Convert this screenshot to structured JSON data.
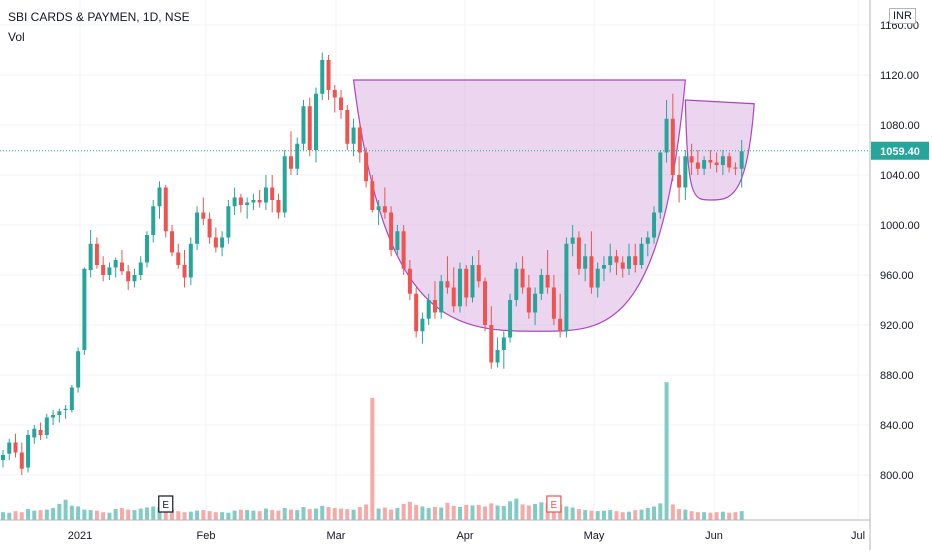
{
  "header": {
    "title": "SBI CARDS & PAYMEN, 1D, NSE",
    "volume_label": "Vol",
    "currency": "INR"
  },
  "colors": {
    "up": "#26a69a",
    "down": "#ef5350",
    "up_vol": "#80cbc4",
    "down_vol": "#f7a9a7",
    "pattern_fill": "#e1bee7",
    "pattern_stroke": "#ab47bc",
    "last_price": "#26a69a",
    "grid": "#f0f3fa",
    "axis": "#b2b5be"
  },
  "chart_data": {
    "type": "candlestick",
    "title": "SBI CARDS & PAYMEN, 1D, NSE",
    "ylim": [
      770,
      1160
    ],
    "y_ticks": [
      "1160.00",
      "1120.00",
      "1080.00",
      "1040.00",
      "1000.00",
      "960.00",
      "920.00",
      "880.00",
      "840.00",
      "800.00"
    ],
    "x_ticks": [
      "2021",
      "Feb",
      "Mar",
      "Apr",
      "May",
      "Jun",
      "Jul"
    ],
    "last_price": "1059.40",
    "grid": true,
    "candles": [
      [
        812,
        820,
        806,
        816
      ],
      [
        817,
        829,
        812,
        826
      ],
      [
        826,
        833,
        814,
        818
      ],
      [
        818,
        826,
        800,
        805
      ],
      [
        806,
        836,
        802,
        832
      ],
      [
        830,
        840,
        825,
        837
      ],
      [
        836,
        842,
        828,
        832
      ],
      [
        832,
        849,
        829,
        846
      ],
      [
        846,
        852,
        840,
        848
      ],
      [
        848,
        853,
        842,
        851
      ],
      [
        852,
        856,
        845,
        853
      ],
      [
        852,
        872,
        850,
        870
      ],
      [
        870,
        902,
        866,
        899
      ],
      [
        900,
        966,
        896,
        965
      ],
      [
        964,
        996,
        958,
        985
      ],
      [
        985,
        990,
        965,
        968
      ],
      [
        968,
        975,
        955,
        960
      ],
      [
        960,
        970,
        956,
        966
      ],
      [
        966,
        974,
        958,
        972
      ],
      [
        970,
        980,
        960,
        963
      ],
      [
        963,
        968,
        948,
        955
      ],
      [
        955,
        965,
        950,
        960
      ],
      [
        960,
        975,
        956,
        970
      ],
      [
        970,
        995,
        966,
        992
      ],
      [
        992,
        1020,
        986,
        1015
      ],
      [
        1015,
        1035,
        1005,
        1030
      ],
      [
        1030,
        1032,
        990,
        995
      ],
      [
        995,
        1000,
        975,
        978
      ],
      [
        978,
        985,
        965,
        968
      ],
      [
        968,
        980,
        950,
        958
      ],
      [
        958,
        990,
        952,
        985
      ],
      [
        985,
        1015,
        980,
        1010
      ],
      [
        1010,
        1022,
        1000,
        1005
      ],
      [
        1005,
        1010,
        985,
        990
      ],
      [
        990,
        998,
        978,
        982
      ],
      [
        982,
        995,
        975,
        990
      ],
      [
        990,
        1020,
        985,
        1015
      ],
      [
        1015,
        1030,
        1008,
        1022
      ],
      [
        1022,
        1025,
        1010,
        1016
      ],
      [
        1016,
        1022,
        1005,
        1018
      ],
      [
        1018,
        1025,
        1012,
        1020
      ],
      [
        1020,
        1028,
        1014,
        1018
      ],
      [
        1018,
        1040,
        1012,
        1030
      ],
      [
        1030,
        1040,
        1010,
        1020
      ],
      [
        1020,
        1025,
        1005,
        1010
      ],
      [
        1010,
        1060,
        1006,
        1055
      ],
      [
        1055,
        1075,
        1040,
        1045
      ],
      [
        1045,
        1070,
        1040,
        1065
      ],
      [
        1065,
        1100,
        1060,
        1095
      ],
      [
        1095,
        1102,
        1055,
        1060
      ],
      [
        1060,
        1110,
        1050,
        1105
      ],
      [
        1105,
        1138,
        1100,
        1132
      ],
      [
        1132,
        1136,
        1100,
        1108
      ],
      [
        1108,
        1112,
        1090,
        1102
      ],
      [
        1102,
        1108,
        1085,
        1092
      ],
      [
        1092,
        1096,
        1060,
        1065
      ],
      [
        1065,
        1085,
        1055,
        1078
      ],
      [
        1078,
        1082,
        1050,
        1058
      ],
      [
        1058,
        1062,
        1030,
        1035
      ],
      [
        1035,
        1040,
        1010,
        1012
      ],
      [
        1012,
        1020,
        1000,
        1015
      ],
      [
        1015,
        1030,
        1005,
        1010
      ],
      [
        1010,
        1015,
        975,
        980
      ],
      [
        980,
        1000,
        976,
        995
      ],
      [
        995,
        1000,
        960,
        965
      ],
      [
        965,
        972,
        940,
        945
      ],
      [
        945,
        950,
        910,
        915
      ],
      [
        915,
        930,
        905,
        925
      ],
      [
        925,
        945,
        920,
        940
      ],
      [
        940,
        955,
        925,
        930
      ],
      [
        930,
        960,
        925,
        955
      ],
      [
        955,
        975,
        945,
        950
      ],
      [
        950,
        966,
        930,
        935
      ],
      [
        935,
        970,
        930,
        965
      ],
      [
        965,
        968,
        935,
        942
      ],
      [
        942,
        975,
        938,
        968
      ],
      [
        968,
        980,
        950,
        955
      ],
      [
        955,
        958,
        915,
        920
      ],
      [
        920,
        935,
        885,
        890
      ],
      [
        890,
        910,
        886,
        900
      ],
      [
        900,
        915,
        885,
        910
      ],
      [
        910,
        945,
        906,
        940
      ],
      [
        940,
        970,
        935,
        965
      ],
      [
        965,
        975,
        945,
        950
      ],
      [
        950,
        960,
        925,
        930
      ],
      [
        930,
        950,
        920,
        945
      ],
      [
        945,
        965,
        940,
        960
      ],
      [
        960,
        980,
        945,
        950
      ],
      [
        950,
        960,
        920,
        925
      ],
      [
        925,
        945,
        910,
        915
      ],
      [
        915,
        990,
        910,
        985
      ],
      [
        985,
        1000,
        975,
        990
      ],
      [
        990,
        995,
        960,
        965
      ],
      [
        965,
        985,
        955,
        975
      ],
      [
        975,
        995,
        945,
        950
      ],
      [
        950,
        970,
        942,
        965
      ],
      [
        965,
        975,
        955,
        968
      ],
      [
        968,
        985,
        962,
        975
      ],
      [
        975,
        980,
        960,
        970
      ],
      [
        970,
        975,
        958,
        965
      ],
      [
        965,
        985,
        960,
        975
      ],
      [
        975,
        985,
        962,
        968
      ],
      [
        968,
        990,
        965,
        985
      ],
      [
        985,
        995,
        975,
        990
      ],
      [
        990,
        1015,
        985,
        1010
      ],
      [
        1010,
        1060,
        1005,
        1058
      ],
      [
        1058,
        1100,
        1050,
        1085
      ],
      [
        1085,
        1105,
        1035,
        1040
      ],
      [
        1040,
        1055,
        1018,
        1030
      ],
      [
        1030,
        1060,
        1020,
        1055
      ],
      [
        1055,
        1065,
        1040,
        1050
      ],
      [
        1050,
        1060,
        1040,
        1045
      ],
      [
        1045,
        1055,
        1040,
        1052
      ],
      [
        1052,
        1060,
        1045,
        1050
      ],
      [
        1050,
        1058,
        1042,
        1048
      ],
      [
        1048,
        1060,
        1040,
        1055
      ],
      [
        1055,
        1058,
        1042,
        1046
      ],
      [
        1046,
        1050,
        1040,
        1045
      ],
      [
        1045,
        1068,
        1030,
        1059
      ]
    ],
    "volumes": [
      0.3,
      0.28,
      0.34,
      0.3,
      0.42,
      0.36,
      0.38,
      0.4,
      0.46,
      0.62,
      0.78,
      0.55,
      0.52,
      0.4,
      0.38,
      0.36,
      0.3,
      0.28,
      0.42,
      0.46,
      0.4,
      0.38,
      0.44,
      0.48,
      0.52,
      0.5,
      0.46,
      0.4,
      0.34,
      0.3,
      0.32,
      0.36,
      0.38,
      0.34,
      0.3,
      0.3,
      0.28,
      0.36,
      0.4,
      0.38,
      0.36,
      0.34,
      0.44,
      0.38,
      0.36,
      0.46,
      0.4,
      0.38,
      0.5,
      0.42,
      0.44,
      0.54,
      0.5,
      0.46,
      0.44,
      0.42,
      0.4,
      0.5,
      0.6,
      4.7,
      0.44,
      0.48,
      0.4,
      0.46,
      0.62,
      0.7,
      0.58,
      0.52,
      0.46,
      0.5,
      0.48,
      0.66,
      0.54,
      0.5,
      0.58,
      0.56,
      0.58,
      0.52,
      0.64,
      0.56,
      0.54,
      0.72,
      0.82,
      0.6,
      0.56,
      0.62,
      0.68,
      0.66,
      0.72,
      0.6,
      0.52,
      0.48,
      0.42,
      0.38,
      0.36,
      0.34,
      0.36,
      0.38,
      0.34,
      0.3,
      0.32,
      0.38,
      0.4,
      0.46,
      0.52,
      0.64,
      5.3,
      0.6,
      0.42,
      0.4,
      0.34,
      0.3,
      0.3,
      0.28,
      0.3,
      0.32,
      0.28,
      0.3,
      0.34
    ],
    "markers": [
      {
        "label": "E",
        "index": 26,
        "style": "dark"
      },
      {
        "label": "E",
        "index": 88,
        "style": "red"
      }
    ],
    "cup": {
      "start": [
        56,
        1116
      ],
      "bottom": [
        86,
        915
      ],
      "end": [
        109,
        1116
      ]
    },
    "handle": {
      "start": [
        109,
        1100
      ],
      "bottom": [
        113,
        1020
      ],
      "end": [
        120,
        1097
      ]
    }
  }
}
